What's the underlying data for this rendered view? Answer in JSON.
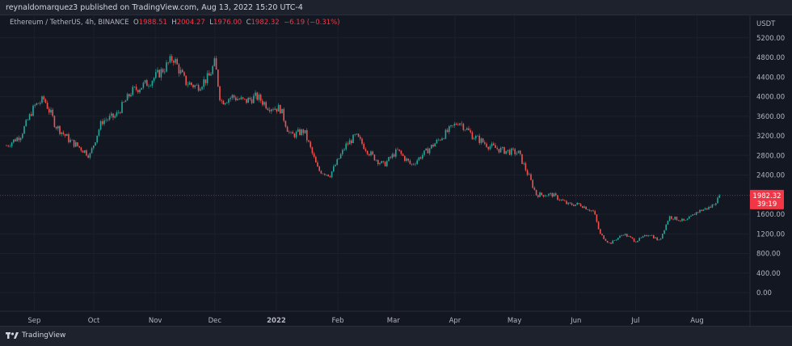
{
  "header": {
    "published": "reynaldomarquez3 published on TradingView.com, Aug 13, 2022 15:20 UTC-4"
  },
  "legend": {
    "symbol": "Ethereum / TetherUS, 4h, BINANCE",
    "o_label": "O",
    "o": "1988.51",
    "h_label": "H",
    "h": "2004.27",
    "l_label": "L",
    "l": "1976.00",
    "c_label": "C",
    "c": "1982.32",
    "change": "−6.19 (−0.31%)"
  },
  "footer": {
    "brand": "TradingView"
  },
  "colors": {
    "up": "#26a69a",
    "down": "#ef5350",
    "background": "#131722",
    "price_tag": "#f23645"
  },
  "chart_data": {
    "type": "candlestick",
    "title": "Ethereum / TetherUS, 4h, BINANCE",
    "y_unit": "USDT",
    "ylim": [
      -400,
      5600
    ],
    "y_ticks": [
      "5200.00",
      "4800.00",
      "4400.00",
      "4000.00",
      "3600.00",
      "3200.00",
      "2800.00",
      "2400.00",
      "1600.00",
      "1200.00",
      "800.00",
      "400.00",
      "0.00"
    ],
    "x_ticks": [
      "Sep",
      "Oct",
      "Nov",
      "Dec",
      "2022",
      "Feb",
      "Mar",
      "Apr",
      "May",
      "Jun",
      "Jul",
      "Aug"
    ],
    "last_price": "1982.32",
    "countdown": "39:19",
    "approx_closes": [
      [
        "2021-08-18",
        3000
      ],
      [
        "2021-08-25",
        3200
      ],
      [
        "2021-09-01",
        3800
      ],
      [
        "2021-09-06",
        3950
      ],
      [
        "2021-09-12",
        3400
      ],
      [
        "2021-09-19",
        3100
      ],
      [
        "2021-09-26",
        2900
      ],
      [
        "2021-09-29",
        2800
      ],
      [
        "2021-10-05",
        3500
      ],
      [
        "2021-10-12",
        3600
      ],
      [
        "2021-10-20",
        4100
      ],
      [
        "2021-10-29",
        4300
      ],
      [
        "2021-11-05",
        4550
      ],
      [
        "2021-11-10",
        4800
      ],
      [
        "2021-11-16",
        4300
      ],
      [
        "2021-11-22",
        4200
      ],
      [
        "2021-11-28",
        4400
      ],
      [
        "2021-12-01",
        4700
      ],
      [
        "2021-12-04",
        3900
      ],
      [
        "2021-12-10",
        4000
      ],
      [
        "2021-12-16",
        3900
      ],
      [
        "2021-12-22",
        4000
      ],
      [
        "2021-12-28",
        3800
      ],
      [
        "2022-01-03",
        3750
      ],
      [
        "2022-01-08",
        3200
      ],
      [
        "2022-01-15",
        3300
      ],
      [
        "2022-01-22",
        2500
      ],
      [
        "2022-01-28",
        2400
      ],
      [
        "2022-02-05",
        3000
      ],
      [
        "2022-02-10",
        3200
      ],
      [
        "2022-02-18",
        2800
      ],
      [
        "2022-02-24",
        2600
      ],
      [
        "2022-03-03",
        2900
      ],
      [
        "2022-03-10",
        2600
      ],
      [
        "2022-03-18",
        2900
      ],
      [
        "2022-03-26",
        3200
      ],
      [
        "2022-04-03",
        3500
      ],
      [
        "2022-04-10",
        3200
      ],
      [
        "2022-04-18",
        3000
      ],
      [
        "2022-04-25",
        2900
      ],
      [
        "2022-05-03",
        2850
      ],
      [
        "2022-05-09",
        2300
      ],
      [
        "2022-05-12",
        2000
      ],
      [
        "2022-05-20",
        2000
      ],
      [
        "2022-05-28",
        1800
      ],
      [
        "2022-06-03",
        1800
      ],
      [
        "2022-06-10",
        1650
      ],
      [
        "2022-06-13",
        1200
      ],
      [
        "2022-06-18",
        1000
      ],
      [
        "2022-06-25",
        1200
      ],
      [
        "2022-07-01",
        1050
      ],
      [
        "2022-07-08",
        1200
      ],
      [
        "2022-07-13",
        1050
      ],
      [
        "2022-07-18",
        1550
      ],
      [
        "2022-07-26",
        1450
      ],
      [
        "2022-08-01",
        1650
      ],
      [
        "2022-08-08",
        1750
      ],
      [
        "2022-08-13",
        1982.32
      ]
    ]
  }
}
